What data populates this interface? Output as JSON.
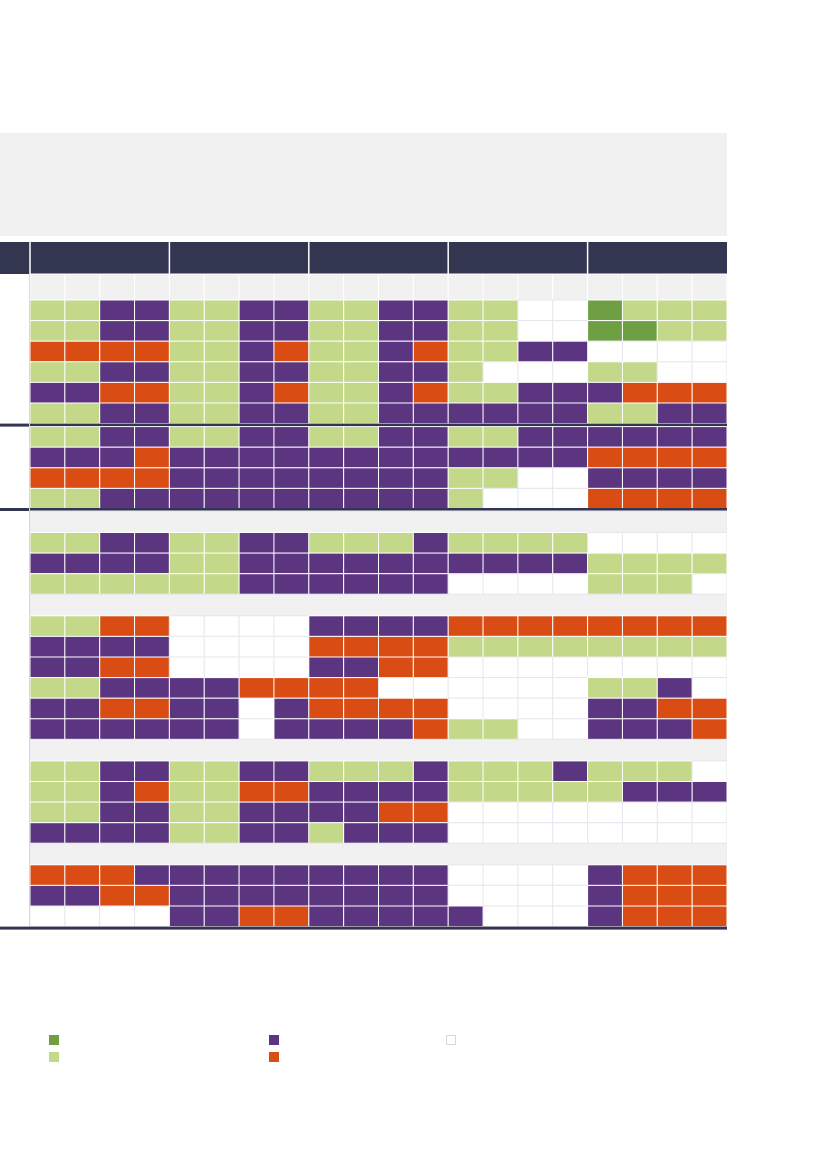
{
  "colors": {
    "dark_green": "#6ea043",
    "light_green": "#c3d889",
    "purple": "#5c3580",
    "orange": "#d94c13",
    "empty": "#ffffff",
    "band": "#f1f1f2",
    "header": "#333651",
    "grid_line": "#e7e7ee"
  },
  "chart_data": {
    "type": "heatmap",
    "title": "",
    "column_groups": 5,
    "columns_per_group": 4,
    "value_codes": {
      "G": "dark_green",
      "L": "light_green",
      "P": "purple",
      "O": "orange",
      "W": "empty"
    },
    "sections": [
      {
        "rows": [
          [
            "L",
            "L",
            "P",
            "P",
            "L",
            "L",
            "P",
            "P",
            "L",
            "L",
            "P",
            "P",
            "L",
            "L",
            "W",
            "W",
            "G",
            "L",
            "L",
            "L"
          ],
          [
            "L",
            "L",
            "P",
            "P",
            "L",
            "L",
            "P",
            "P",
            "L",
            "L",
            "P",
            "P",
            "L",
            "L",
            "W",
            "W",
            "G",
            "G",
            "L",
            "L"
          ],
          [
            "O",
            "O",
            "O",
            "O",
            "L",
            "L",
            "P",
            "O",
            "L",
            "L",
            "P",
            "O",
            "L",
            "L",
            "P",
            "P",
            "W",
            "W",
            "W",
            "W"
          ],
          [
            "L",
            "L",
            "P",
            "P",
            "L",
            "L",
            "P",
            "P",
            "L",
            "L",
            "P",
            "P",
            "L",
            "W",
            "W",
            "W",
            "L",
            "L",
            "W",
            "W"
          ],
          [
            "P",
            "P",
            "O",
            "O",
            "L",
            "L",
            "P",
            "O",
            "L",
            "L",
            "P",
            "O",
            "L",
            "L",
            "P",
            "P",
            "P",
            "O",
            "O",
            "O"
          ],
          [
            "L",
            "L",
            "P",
            "P",
            "L",
            "L",
            "P",
            "P",
            "L",
            "L",
            "P",
            "P",
            "P",
            "P",
            "P",
            "P",
            "L",
            "L",
            "P",
            "P"
          ]
        ]
      },
      {
        "rows": [
          [
            "L",
            "L",
            "P",
            "P",
            "L",
            "L",
            "P",
            "P",
            "L",
            "L",
            "P",
            "P",
            "L",
            "L",
            "P",
            "P",
            "P",
            "P",
            "P",
            "P"
          ],
          [
            "P",
            "P",
            "P",
            "O",
            "P",
            "P",
            "P",
            "P",
            "P",
            "P",
            "P",
            "P",
            "P",
            "P",
            "P",
            "P",
            "O",
            "O",
            "O",
            "O"
          ],
          [
            "O",
            "O",
            "O",
            "O",
            "P",
            "P",
            "P",
            "P",
            "P",
            "P",
            "P",
            "P",
            "L",
            "L",
            "W",
            "W",
            "P",
            "P",
            "P",
            "P"
          ],
          [
            "L",
            "L",
            "P",
            "P",
            "P",
            "P",
            "P",
            "P",
            "P",
            "P",
            "P",
            "P",
            "L",
            "W",
            "W",
            "W",
            "O",
            "O",
            "O",
            "O"
          ]
        ]
      },
      {
        "rows": [
          [
            "L",
            "L",
            "P",
            "P",
            "L",
            "L",
            "P",
            "P",
            "L",
            "L",
            "L",
            "P",
            "L",
            "L",
            "L",
            "L",
            "W",
            "W",
            "W",
            "W"
          ],
          [
            "P",
            "P",
            "P",
            "P",
            "L",
            "L",
            "P",
            "P",
            "P",
            "P",
            "P",
            "P",
            "P",
            "P",
            "P",
            "P",
            "L",
            "L",
            "L",
            "L"
          ],
          [
            "L",
            "L",
            "L",
            "L",
            "L",
            "L",
            "P",
            "P",
            "P",
            "P",
            "P",
            "P",
            "W",
            "W",
            "W",
            "W",
            "L",
            "L",
            "L",
            "W"
          ]
        ]
      },
      {
        "rows": [
          [
            "L",
            "L",
            "O",
            "O",
            "W",
            "W",
            "W",
            "W",
            "P",
            "P",
            "P",
            "P",
            "O",
            "O",
            "O",
            "O",
            "O",
            "O",
            "O",
            "O"
          ],
          [
            "P",
            "P",
            "P",
            "P",
            "W",
            "W",
            "W",
            "W",
            "O",
            "O",
            "O",
            "O",
            "L",
            "L",
            "L",
            "L",
            "L",
            "L",
            "L",
            "L"
          ],
          [
            "P",
            "P",
            "O",
            "O",
            "W",
            "W",
            "W",
            "W",
            "P",
            "P",
            "O",
            "O",
            "W",
            "W",
            "W",
            "W",
            "W",
            "W",
            "W",
            "W"
          ],
          [
            "L",
            "L",
            "P",
            "P",
            "P",
            "P",
            "O",
            "O",
            "O",
            "O",
            "W",
            "W",
            "W",
            "W",
            "W",
            "W",
            "L",
            "L",
            "P",
            "W"
          ],
          [
            "P",
            "P",
            "O",
            "O",
            "P",
            "P",
            "W",
            "P",
            "O",
            "O",
            "O",
            "O",
            "W",
            "W",
            "W",
            "W",
            "P",
            "P",
            "O",
            "O"
          ],
          [
            "P",
            "P",
            "P",
            "P",
            "P",
            "P",
            "W",
            "P",
            "P",
            "P",
            "P",
            "O",
            "L",
            "L",
            "W",
            "W",
            "P",
            "P",
            "P",
            "O"
          ]
        ]
      },
      {
        "rows": [
          [
            "L",
            "L",
            "P",
            "P",
            "L",
            "L",
            "P",
            "P",
            "L",
            "L",
            "L",
            "P",
            "L",
            "L",
            "L",
            "P",
            "L",
            "L",
            "L",
            "W"
          ],
          [
            "L",
            "L",
            "P",
            "O",
            "L",
            "L",
            "O",
            "O",
            "P",
            "P",
            "P",
            "P",
            "L",
            "L",
            "L",
            "L",
            "L",
            "P",
            "P",
            "P"
          ],
          [
            "L",
            "L",
            "P",
            "P",
            "L",
            "L",
            "P",
            "P",
            "P",
            "P",
            "O",
            "O",
            "W",
            "W",
            "W",
            "W",
            "W",
            "W",
            "W",
            "W"
          ],
          [
            "P",
            "P",
            "P",
            "P",
            "L",
            "L",
            "P",
            "P",
            "L",
            "P",
            "P",
            "P",
            "W",
            "W",
            "W",
            "W",
            "W",
            "W",
            "W",
            "W"
          ]
        ]
      },
      {
        "rows": [
          [
            "O",
            "O",
            "O",
            "P",
            "P",
            "P",
            "P",
            "P",
            "P",
            "P",
            "P",
            "P",
            "W",
            "W",
            "W",
            "W",
            "P",
            "O",
            "O",
            "O"
          ],
          [
            "P",
            "P",
            "O",
            "O",
            "P",
            "P",
            "P",
            "P",
            "P",
            "P",
            "P",
            "P",
            "W",
            "W",
            "W",
            "W",
            "P",
            "O",
            "O",
            "O"
          ],
          [
            "W",
            "W",
            "W",
            "W",
            "P",
            "P",
            "O",
            "O",
            "P",
            "P",
            "P",
            "P",
            "P",
            "W",
            "W",
            "W",
            "P",
            "O",
            "O",
            "O"
          ]
        ]
      }
    ],
    "legend": [
      {
        "color": "dark_green",
        "label": ""
      },
      {
        "color": "light_green",
        "label": ""
      },
      {
        "color": "purple",
        "label": ""
      },
      {
        "color": "orange",
        "label": ""
      },
      {
        "color": "empty",
        "label": ""
      }
    ]
  }
}
